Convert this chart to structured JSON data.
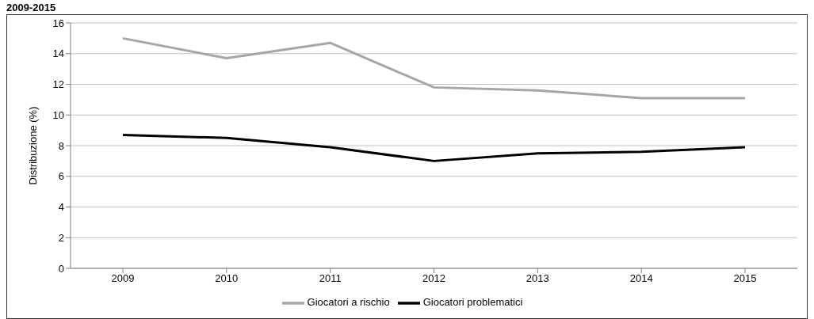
{
  "chart_data": {
    "type": "line",
    "title": "2009-2015",
    "ylabel": "Distribuzione (%)",
    "categories": [
      "2009",
      "2010",
      "2011",
      "2012",
      "2013",
      "2014",
      "2015"
    ],
    "series": [
      {
        "name": "Giocatori a rischio",
        "color": "#a6a6a6",
        "values": [
          15.0,
          13.7,
          14.7,
          11.8,
          11.6,
          11.1,
          11.1
        ]
      },
      {
        "name": "Giocatori problematici",
        "color": "#000000",
        "values": [
          8.7,
          8.5,
          7.9,
          7.0,
          7.5,
          7.6,
          7.9
        ]
      }
    ],
    "ylim": [
      0,
      16
    ],
    "yticks": [
      0,
      2,
      4,
      6,
      8,
      10,
      12,
      14,
      16
    ],
    "grid": "y",
    "legend": "bottom",
    "marker": "none"
  }
}
